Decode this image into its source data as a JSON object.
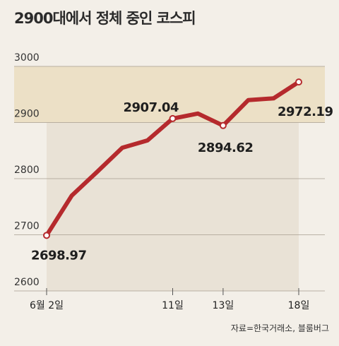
{
  "chart_data": {
    "type": "line",
    "title": "2900대에서 정체 중인 코스피",
    "source": "자료=한국거래소, 블룸버그",
    "ylim": [
      2600,
      3000
    ],
    "yticks": [
      2600,
      2700,
      2800,
      2900,
      3000
    ],
    "highlight_band": [
      2900,
      3000
    ],
    "x_labels": [
      {
        "index": 0,
        "label": "6월 2일"
      },
      {
        "index": 5,
        "label": "11일"
      },
      {
        "index": 7,
        "label": "13일"
      },
      {
        "index": 10,
        "label": "18일"
      }
    ],
    "series": [
      {
        "values": [
          2698.97,
          2770,
          2812,
          2855,
          2868,
          2907.04,
          2916,
          2894.62,
          2940,
          2943,
          2972.19
        ]
      }
    ],
    "annotations": [
      {
        "index": 0,
        "label": "2698.97"
      },
      {
        "index": 5,
        "label": "2907.04"
      },
      {
        "index": 7,
        "label": "2894.62"
      },
      {
        "index": 10,
        "label": "2972.19"
      }
    ],
    "colors": {
      "line": "#b52a2d",
      "band": "#ece0c6",
      "area": "#e9e2d6",
      "grid": "#a79e90",
      "marker_fill": "#ffffff"
    }
  }
}
